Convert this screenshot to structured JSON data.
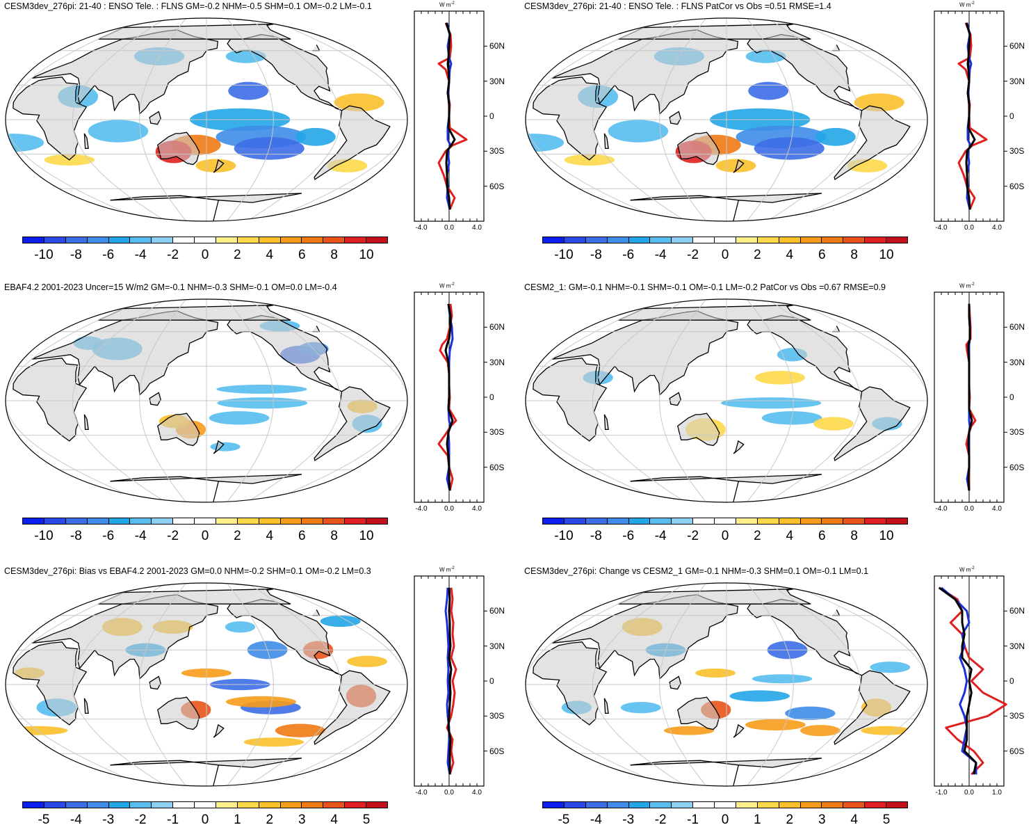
{
  "panels": [
    {
      "title": "CESM3dev_276pi: 21-40 : ENSO Tele. : FLNS GM=-0.2 NHM=-0.5 SHM=0.1 OM=-0.2 LM=-0.1",
      "colorbar": [
        "-10",
        "-8",
        "-6",
        "-4",
        "-2",
        "0",
        "2",
        "4",
        "6",
        "8",
        "10"
      ],
      "zonal_xticks": [
        "-4.0",
        "0.0",
        "4.0"
      ]
    },
    {
      "title": "CESM3dev_276pi: 21-40 : ENSO Tele. : FLNS PatCor vs Obs =0.51 RMSE=1.4",
      "colorbar": [
        "-10",
        "-8",
        "-6",
        "-4",
        "-2",
        "0",
        "2",
        "4",
        "6",
        "8",
        "10"
      ],
      "zonal_xticks": [
        "-4.0",
        "0.0",
        "4.0"
      ]
    },
    {
      "title": "EBAF4.2 2001-2023 Uncer=15 W/m2 GM=-0.1 NHM=-0.3 SHM=-0.1 OM=0.0 LM=-0.4",
      "colorbar": [
        "-10",
        "-8",
        "-6",
        "-4",
        "-2",
        "0",
        "2",
        "4",
        "6",
        "8",
        "10"
      ],
      "zonal_xticks": [
        "-4.0",
        "0.0",
        "4.0"
      ]
    },
    {
      "title": "CESM2_1: GM=-0.1 NHM=-0.1 SHM=-0.1 OM=-0.1 LM=-0.2 PatCor vs Obs =0.67 RMSE=0.9",
      "colorbar": [
        "-10",
        "-8",
        "-6",
        "-4",
        "-2",
        "0",
        "2",
        "4",
        "6",
        "8",
        "10"
      ],
      "zonal_xticks": [
        "-4.0",
        "0.0",
        "4.0"
      ]
    },
    {
      "title": "CESM3dev_276pi: Bias vs EBAF4.2 2001-2023 GM=0.0 NHM=-0.2 SHM=0.1 OM=-0.2 LM=0.3",
      "colorbar": [
        "-5",
        "-4",
        "-3",
        "-2",
        "-1",
        "0",
        "1",
        "2",
        "3",
        "4",
        "5"
      ],
      "zonal_xticks": [
        "-4.0",
        "0.0",
        "4.0"
      ]
    },
    {
      "title": "CESM3dev_276pi: Change vs CESM2_1 GM=-0.1 NHM=-0.3 SHM=0.1 OM=-0.1 LM=0.1",
      "colorbar": [
        "-5",
        "-4",
        "-3",
        "-2",
        "-1",
        "0",
        "1",
        "2",
        "3",
        "4",
        "5"
      ],
      "zonal_xticks": [
        "-1.0",
        "0.0",
        "1.0"
      ]
    }
  ],
  "unit_label": "W m",
  "unit_exponent": "-2",
  "lat_labels": [
    "60N",
    "30N",
    "0",
    "30S",
    "60S"
  ],
  "colorbar_colors": [
    "#0a1ef0",
    "#2a4ae8",
    "#3c6ee6",
    "#3f8de8",
    "#23a6e8",
    "#56bdee",
    "#8ccff2",
    "#ffffff",
    "#ffffff",
    "#fff08a",
    "#ffd94a",
    "#fbc02a",
    "#f79c1a",
    "#f07a14",
    "#e8541a",
    "#e02020",
    "#c4101a"
  ],
  "colors": {
    "land": "#cccccc",
    "coast": "#000000",
    "grid": "#c8c8c8"
  },
  "chart_data": [
    {
      "type": "heatmap",
      "title": "CESM3dev_276pi: 21-40 : ENSO Tele. : FLNS GM=-0.2 NHM=-0.5 SHM=0.1 OM=-0.2 LM=-0.1",
      "colorbar_levels": [
        -10,
        -8,
        -6,
        -4,
        -2,
        0,
        2,
        4,
        6,
        8,
        10
      ],
      "zonal_mean": {
        "lat": [
          80,
          70,
          60,
          50,
          45,
          40,
          30,
          20,
          10,
          0,
          -10,
          -20,
          -25,
          -30,
          -40,
          -50,
          -60,
          -70,
          -80
        ],
        "series": [
          {
            "color": "#e02020",
            "values": [
              -0.5,
              0.2,
              0.3,
              0.1,
              -1.5,
              -0.5,
              0.0,
              -0.2,
              0.1,
              0.0,
              0.1,
              2.5,
              0.5,
              -0.5,
              -1.5,
              -0.8,
              -0.3,
              0.8,
              0.1
            ]
          },
          {
            "color": "#1d2fd6",
            "values": [
              -0.3,
              0.1,
              -0.2,
              0.0,
              0.3,
              0.1,
              0.0,
              -0.1,
              0.0,
              0.0,
              -0.2,
              -0.2,
              0.2,
              -0.2,
              0.0,
              -0.3,
              -0.2,
              -0.3,
              0.1
            ]
          },
          {
            "color": "#000000",
            "values": [
              -0.4,
              0.1,
              0.0,
              -0.1,
              -0.2,
              -0.1,
              0.0,
              -0.2,
              0.0,
              0.0,
              -0.1,
              0.8,
              0.3,
              -0.3,
              -0.4,
              -0.3,
              -0.3,
              0.0,
              0.1
            ]
          }
        ],
        "xlim": [
          -5,
          5
        ]
      }
    },
    {
      "type": "heatmap",
      "title": "CESM3dev_276pi: 21-40 : ENSO Tele. : FLNS PatCor vs Obs =0.51 RMSE=1.4",
      "colorbar_levels": [
        -10,
        -8,
        -6,
        -4,
        -2,
        0,
        2,
        4,
        6,
        8,
        10
      ],
      "zonal_mean": {
        "lat": [
          80,
          70,
          60,
          50,
          45,
          40,
          30,
          20,
          10,
          0,
          -10,
          -20,
          -25,
          -30,
          -40,
          -50,
          -60,
          -70,
          -80
        ],
        "series": [
          {
            "color": "#e02020",
            "values": [
              -0.5,
              0.2,
              0.3,
              0.1,
              -1.5,
              -0.5,
              0.0,
              -0.2,
              0.1,
              0.0,
              0.1,
              2.5,
              0.5,
              -0.5,
              -1.5,
              -0.8,
              -0.3,
              0.8,
              0.1
            ]
          },
          {
            "color": "#1d2fd6",
            "values": [
              -0.3,
              0.1,
              -0.2,
              0.0,
              0.3,
              0.1,
              0.0,
              -0.1,
              0.0,
              0.0,
              -0.2,
              -0.2,
              0.2,
              -0.2,
              0.0,
              -0.3,
              -0.2,
              -0.3,
              0.1
            ]
          },
          {
            "color": "#000000",
            "values": [
              -0.4,
              0.1,
              0.0,
              -0.1,
              -0.2,
              -0.1,
              0.0,
              -0.2,
              0.0,
              0.0,
              -0.1,
              0.8,
              0.3,
              -0.3,
              -0.4,
              -0.3,
              -0.3,
              0.0,
              0.1
            ]
          }
        ],
        "xlim": [
          -5,
          5
        ]
      }
    },
    {
      "type": "heatmap",
      "title": "EBAF4.2 2001-2023 Uncer=15 W/m2 GM=-0.1 NHM=-0.3 SHM=-0.1 OM=0.0 LM=-0.4",
      "colorbar_levels": [
        -10,
        -8,
        -6,
        -4,
        -2,
        0,
        2,
        4,
        6,
        8,
        10
      ],
      "zonal_mean": {
        "lat": [
          80,
          70,
          60,
          50,
          45,
          40,
          30,
          20,
          10,
          0,
          -10,
          -20,
          -25,
          -30,
          -40,
          -50,
          -60,
          -70,
          -80
        ],
        "series": [
          {
            "color": "#e02020",
            "values": [
              0.2,
              0.4,
              0.1,
              -0.3,
              -1.0,
              -1.3,
              -0.2,
              0.0,
              0.0,
              0.1,
              0.0,
              1.0,
              0.2,
              -0.3,
              -1.5,
              -0.2,
              0.0,
              0.5,
              0.1
            ]
          },
          {
            "color": "#1d2fd6",
            "values": [
              -0.1,
              0.1,
              0.4,
              0.5,
              0.3,
              0.1,
              0.0,
              0.0,
              0.0,
              0.0,
              -0.1,
              0.0,
              0.2,
              -0.1,
              0.0,
              0.0,
              0.0,
              -0.3,
              0.1
            ]
          },
          {
            "color": "#000000",
            "values": [
              -0.1,
              0.2,
              0.2,
              0.0,
              -0.3,
              -0.5,
              -0.1,
              0.0,
              0.0,
              0.0,
              -0.1,
              0.5,
              0.2,
              -0.1,
              -0.3,
              -0.1,
              0.0,
              0.0,
              0.1
            ]
          }
        ],
        "xlim": [
          -5,
          5
        ]
      }
    },
    {
      "type": "heatmap",
      "title": "CESM2_1: GM=-0.1 NHM=-0.1 SHM=-0.1 OM=-0.1 LM=-0.2 PatCor vs Obs =0.67 RMSE=0.9",
      "colorbar_levels": [
        -10,
        -8,
        -6,
        -4,
        -2,
        0,
        2,
        4,
        6,
        8,
        10
      ],
      "zonal_mean": {
        "lat": [
          80,
          70,
          60,
          50,
          45,
          40,
          30,
          20,
          10,
          0,
          -10,
          -20,
          -25,
          -30,
          -40,
          -50,
          -60,
          -70,
          -80
        ],
        "series": [
          {
            "color": "#e02020",
            "values": [
              0.0,
              0.1,
              0.2,
              0.2,
              -0.4,
              -0.3,
              0.0,
              0.0,
              0.0,
              0.1,
              0.0,
              0.9,
              0.3,
              0.0,
              -0.4,
              0.0,
              0.0,
              0.0,
              0.0
            ]
          },
          {
            "color": "#1d2fd6",
            "values": [
              0.0,
              0.0,
              0.1,
              0.1,
              0.0,
              0.0,
              0.0,
              0.0,
              0.0,
              0.0,
              0.0,
              0.0,
              0.1,
              0.0,
              0.0,
              0.0,
              0.0,
              -0.3,
              0.0
            ]
          },
          {
            "color": "#000000",
            "values": [
              0.0,
              0.0,
              0.1,
              0.1,
              -0.1,
              -0.1,
              0.0,
              0.0,
              0.0,
              0.0,
              0.0,
              0.4,
              0.2,
              0.0,
              -0.1,
              0.0,
              0.0,
              -0.1,
              0.0
            ]
          }
        ],
        "xlim": [
          -5,
          5
        ]
      }
    },
    {
      "type": "heatmap",
      "title": "CESM3dev_276pi: Bias vs EBAF4.2 2001-2023 GM=0.0 NHM=-0.2 SHM=0.1 OM=-0.2 LM=0.3",
      "colorbar_levels": [
        -5,
        -4,
        -3,
        -2,
        -1,
        0,
        1,
        2,
        3,
        4,
        5
      ],
      "zonal_mean": {
        "lat": [
          80,
          70,
          60,
          50,
          40,
          30,
          20,
          10,
          0,
          -10,
          -20,
          -30,
          -40,
          -50,
          -60,
          -70,
          -80
        ],
        "series": [
          {
            "color": "#e02020",
            "values": [
              0.3,
              0.5,
              0.3,
              0.6,
              0.5,
              0.7,
              0.3,
              1.0,
              0.5,
              0.8,
              0.6,
              0.3,
              -0.3,
              0.5,
              0.3,
              0.6,
              0.1
            ]
          },
          {
            "color": "#1d2fd6",
            "values": [
              -0.2,
              -0.3,
              -0.5,
              -0.3,
              -0.2,
              -0.1,
              -0.2,
              -0.1,
              -0.2,
              -0.1,
              -0.3,
              -0.2,
              0.0,
              0.0,
              -0.1,
              -0.2,
              0.1
            ]
          },
          {
            "color": "#000000",
            "values": [
              0.0,
              0.1,
              0.0,
              0.1,
              0.1,
              0.2,
              0.0,
              0.3,
              0.1,
              0.2,
              0.1,
              0.0,
              -0.1,
              0.2,
              0.1,
              0.1,
              0.1
            ]
          }
        ],
        "xlim": [
          -5,
          5
        ]
      }
    },
    {
      "type": "heatmap",
      "title": "CESM3dev_276pi: Change vs CESM2_1 GM=-0.1 NHM=-0.3 SHM=0.1 OM=-0.1 LM=0.1",
      "colorbar_levels": [
        -5,
        -4,
        -3,
        -2,
        -1,
        0,
        1,
        2,
        3,
        4,
        5
      ],
      "zonal_mean": {
        "lat": [
          80,
          70,
          60,
          50,
          40,
          30,
          20,
          10,
          0,
          -10,
          -20,
          -30,
          -40,
          -50,
          -60,
          -70,
          -80
        ],
        "series": [
          {
            "color": "#e02020",
            "values": [
              -1.3,
              -0.5,
              -0.3,
              -0.8,
              -0.3,
              -0.2,
              0.0,
              0.6,
              0.1,
              0.6,
              1.6,
              0.8,
              -1.0,
              -0.5,
              0.2,
              0.6,
              0.1
            ]
          },
          {
            "color": "#1d2fd6",
            "values": [
              -1.2,
              -0.6,
              -0.1,
              0.0,
              -0.3,
              -0.2,
              -0.4,
              -0.2,
              -0.1,
              -0.2,
              -0.4,
              -0.2,
              -0.1,
              -0.2,
              -0.3,
              0.3,
              0.3
            ]
          },
          {
            "color": "#000000",
            "values": [
              -1.3,
              -0.6,
              -0.3,
              -0.3,
              -0.2,
              -0.3,
              -0.3,
              0.1,
              0.0,
              0.1,
              0.0,
              -0.1,
              -0.1,
              -0.1,
              -0.2,
              0.3,
              0.2
            ]
          }
        ],
        "xlim": [
          -1.5,
          1.5
        ]
      }
    }
  ]
}
